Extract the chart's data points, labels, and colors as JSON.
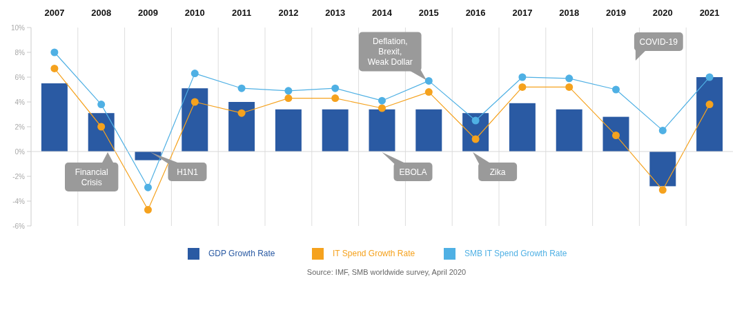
{
  "chart_data": {
    "type": "bar",
    "categories": [
      "2007",
      "2008",
      "2009",
      "2010",
      "2011",
      "2012",
      "2013",
      "2014",
      "2015",
      "2016",
      "2017",
      "2018",
      "2019",
      "2020",
      "2021"
    ],
    "series": [
      {
        "name": "GDP Growth Rate",
        "color": "#2a5aa3",
        "values": [
          5.5,
          3.1,
          -0.7,
          5.1,
          4.0,
          3.4,
          3.4,
          3.4,
          3.4,
          3.1,
          3.9,
          3.4,
          2.8,
          -2.8,
          6.0
        ]
      },
      {
        "name": "IT Spend Growth Rate",
        "type": "line",
        "color": "#f5a21e",
        "values": [
          6.7,
          2.0,
          -4.7,
          4.0,
          3.1,
          4.3,
          4.3,
          3.5,
          4.8,
          1.0,
          5.2,
          5.2,
          1.3,
          -3.1,
          3.8
        ]
      },
      {
        "name": "SMB IT Spend Growth Rate",
        "type": "line",
        "color": "#4fb0e4",
        "values": [
          8.0,
          3.8,
          -2.9,
          6.3,
          5.1,
          4.9,
          5.1,
          4.1,
          5.7,
          2.5,
          6.0,
          5.9,
          5.0,
          1.7,
          6.0
        ]
      }
    ],
    "ylim": [
      -6,
      10
    ],
    "yticks": [
      {
        "value": -6,
        "label": "-6%"
      },
      {
        "value": -4,
        "label": "-4%"
      },
      {
        "value": -2,
        "label": "-2%"
      },
      {
        "value": 0,
        "label": "0%"
      },
      {
        "value": 2,
        "label": "2%"
      },
      {
        "value": 4,
        "label": "4%"
      },
      {
        "value": 6,
        "label": "6%"
      },
      {
        "value": 8,
        "label": "8%"
      },
      {
        "value": 10,
        "label": "10%"
      }
    ],
    "grid": "x",
    "legend": "bottom",
    "marker": "circle",
    "line_style": "solid",
    "annotations": [
      {
        "text": "Financial Crisis",
        "x": "2008",
        "y": 0
      },
      {
        "text": "H1N1",
        "x": "2009",
        "y": 0
      },
      {
        "text": "Deflation, Brexit, Weak Dollar",
        "x": "2015",
        "y": 5.7
      },
      {
        "text": "EBOLA",
        "x": "2014",
        "y": 0
      },
      {
        "text": "Zika",
        "x": "2016",
        "y": 0
      },
      "COVID-19",
      "Source: IMF, SMB worldwide survey, April 2020"
    ]
  }
}
